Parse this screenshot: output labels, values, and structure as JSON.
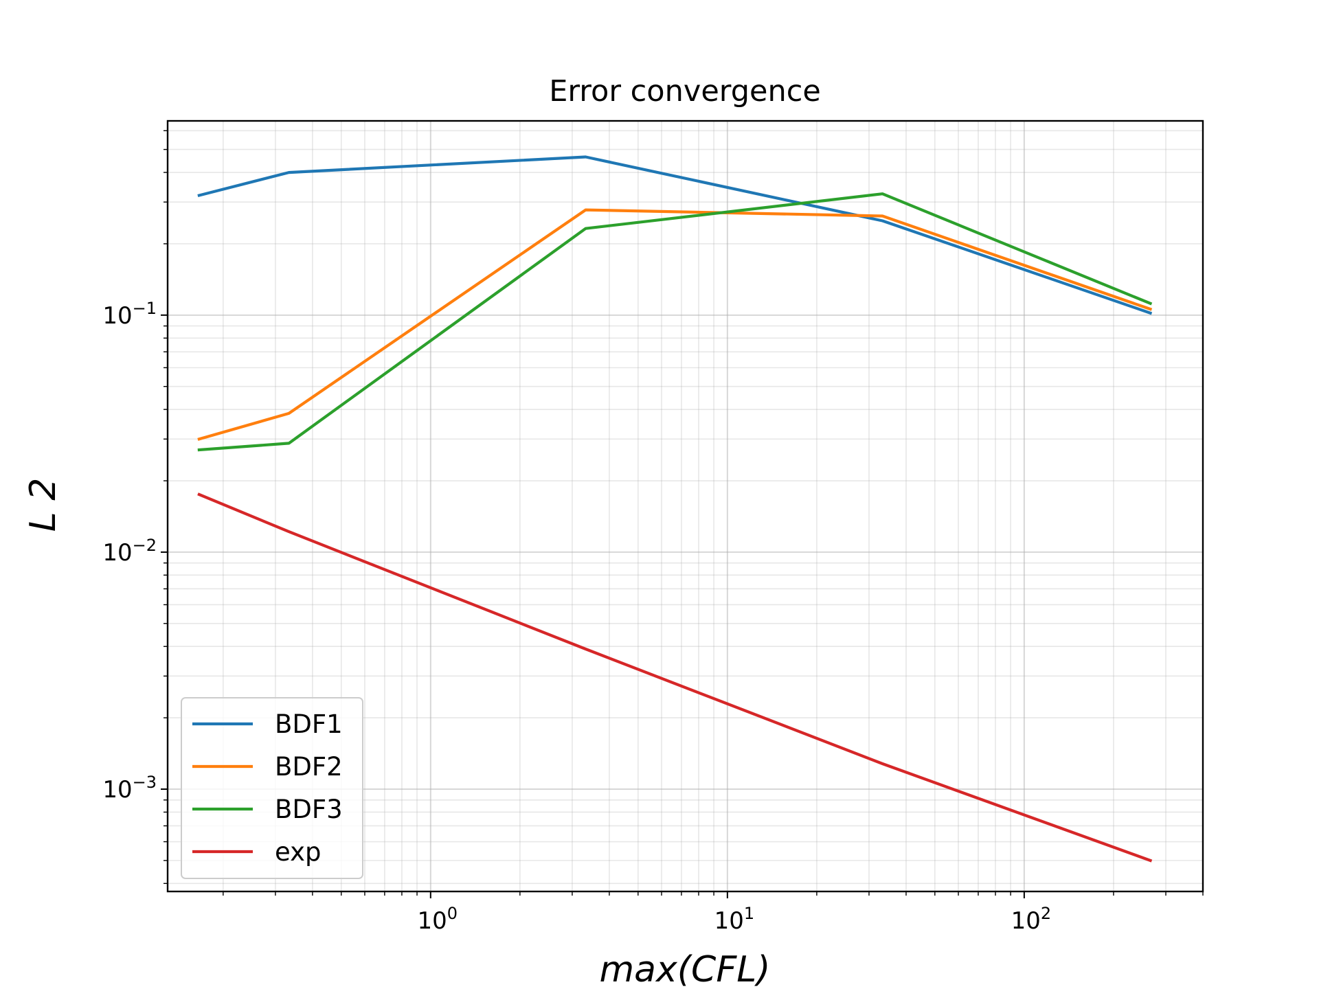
{
  "chart_data": {
    "type": "line",
    "title": "Error convergence",
    "xlabel": "max(CFL)",
    "ylabel": "L 2",
    "xscale": "log",
    "yscale": "log",
    "xlim": [
      0.13,
      400
    ],
    "ylim": [
      0.00037,
      0.66
    ],
    "grid": true,
    "legend_position": "lower-left",
    "x_ticks": [
      {
        "value": 1,
        "base": "10",
        "exp": "0"
      },
      {
        "value": 10,
        "base": "10",
        "exp": "1"
      },
      {
        "value": 100,
        "base": "10",
        "exp": "2"
      }
    ],
    "y_ticks": [
      {
        "value": 0.001,
        "base": "10",
        "exp": "−3"
      },
      {
        "value": 0.01,
        "base": "10",
        "exp": "−2"
      },
      {
        "value": 0.1,
        "base": "10",
        "exp": "−1"
      }
    ],
    "x": [
      0.166,
      0.333,
      3.33,
      33.3,
      266
    ],
    "series": [
      {
        "name": "BDF1",
        "color": "#1f77b4",
        "values": [
          0.32,
          0.4,
          0.465,
          0.25,
          0.102
        ]
      },
      {
        "name": "BDF2",
        "color": "#ff7f0e",
        "values": [
          0.03,
          0.0385,
          0.278,
          0.262,
          0.106
        ]
      },
      {
        "name": "BDF3",
        "color": "#2ca02c",
        "values": [
          0.027,
          0.0288,
          0.232,
          0.325,
          0.112
        ]
      },
      {
        "name": "exp",
        "color": "#d62728",
        "values": [
          0.0175,
          0.0122,
          0.0039,
          0.00128,
          0.0005
        ]
      }
    ]
  }
}
